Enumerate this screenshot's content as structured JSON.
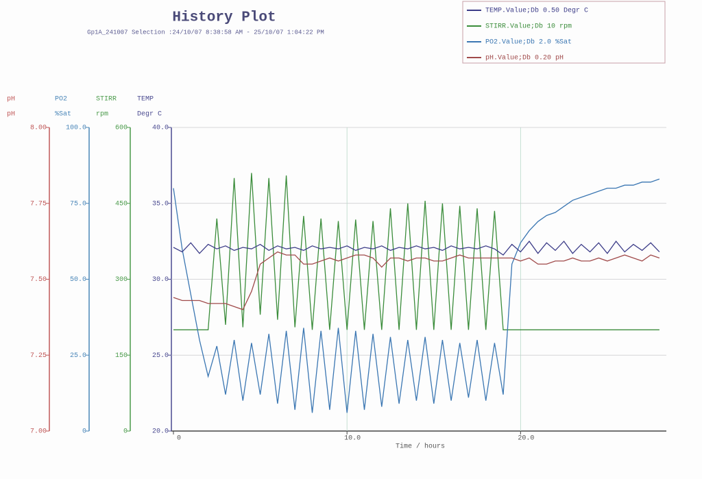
{
  "chart_data": {
    "type": "line",
    "title": "History Plot",
    "subtitle": "Gp1A_241007 Selection :24/10/07 8:38:58 AM - 25/10/07 1:04:22 PM",
    "x_label": "Time / hours",
    "xlim": [
      0,
      28.4
    ],
    "xticks": [
      0,
      {
        "value": 10,
        "label": "10.0"
      },
      {
        "value": 20,
        "label": "20.0"
      }
    ],
    "grid": true,
    "axes": [
      {
        "label": "pH",
        "unit": "pH",
        "color": "#c05858",
        "ylim": [
          7,
          8
        ],
        "yticks": [
          {
            "value": 7,
            "label": "7.00"
          },
          {
            "value": 7.25,
            "label": "7.25"
          },
          {
            "value": 7.5,
            "label": "7.50"
          },
          {
            "value": 7.75,
            "label": "7.75"
          },
          {
            "value": 8,
            "label": "8.00"
          }
        ]
      },
      {
        "label": "PO2",
        "unit": "%Sat",
        "color": "#4a86b8",
        "ylim": [
          0,
          100
        ],
        "yticks": [
          0,
          {
            "value": 25,
            "label": "25.0"
          },
          {
            "value": 50,
            "label": "50.0"
          },
          {
            "value": 75,
            "label": "75.0"
          },
          {
            "value": 100,
            "label": "100.0"
          }
        ]
      },
      {
        "label": "STIRR",
        "unit": "rpm",
        "color": "#4a9a4a",
        "ylim": [
          0,
          600
        ],
        "yticks": [
          0,
          150,
          300,
          450,
          600
        ]
      },
      {
        "label": "TEMP",
        "unit": "Degr C",
        "color": "#4a4a90",
        "ylim": [
          20,
          40
        ],
        "yticks": [
          {
            "value": 20,
            "label": "20.0"
          },
          {
            "value": 25,
            "label": "25.0"
          },
          {
            "value": 30,
            "label": "30.0"
          },
          {
            "value": 35,
            "label": "35.0"
          },
          {
            "value": 40,
            "label": "40.0"
          }
        ]
      }
    ],
    "x": [
      0,
      0.5,
      1,
      1.5,
      2,
      2.5,
      3,
      3.5,
      4,
      4.5,
      5,
      5.5,
      6,
      6.5,
      7,
      7.5,
      8,
      8.5,
      9,
      9.5,
      10,
      10.5,
      11,
      11.5,
      12,
      12.5,
      13,
      13.5,
      14,
      14.5,
      15,
      15.5,
      16,
      16.5,
      17,
      17.5,
      18,
      18.5,
      19,
      19.5,
      20,
      20.5,
      21,
      21.5,
      22,
      22.5,
      23,
      23.5,
      24,
      24.5,
      25,
      25.5,
      26,
      26.5,
      27,
      27.5,
      28
    ],
    "series": [
      {
        "name": "TEMP.Value;Db 0.50 Degr C",
        "axis": "TEMP",
        "color": "#3c3c88",
        "values": [
          32.1,
          31.8,
          32.4,
          31.7,
          32.3,
          32.0,
          32.2,
          31.9,
          32.1,
          32.0,
          32.3,
          31.9,
          32.2,
          32.0,
          32.1,
          31.9,
          32.2,
          32.0,
          32.1,
          32.0,
          32.2,
          31.9,
          32.1,
          32.0,
          32.2,
          31.9,
          32.1,
          32.0,
          32.2,
          32.0,
          32.1,
          31.9,
          32.2,
          32.0,
          32.1,
          32.0,
          32.2,
          32.0,
          31.6,
          32.3,
          31.8,
          32.5,
          31.7,
          32.4,
          31.9,
          32.5,
          31.7,
          32.3,
          31.8,
          32.4,
          31.7,
          32.5,
          31.8,
          32.3,
          31.9,
          32.4,
          31.8
        ]
      },
      {
        "name": "STIRR.Value;Db 10 rpm",
        "axis": "STIRR",
        "color": "#3a8c3a",
        "values": [
          200,
          200,
          200,
          200,
          200,
          420,
          210,
          500,
          205,
          510,
          230,
          500,
          220,
          505,
          205,
          425,
          200,
          420,
          200,
          415,
          200,
          418,
          200,
          415,
          200,
          440,
          200,
          450,
          200,
          455,
          200,
          450,
          200,
          445,
          200,
          440,
          200,
          435,
          200,
          200,
          200,
          200,
          200,
          200,
          200,
          200,
          200,
          200,
          200,
          200,
          200,
          200,
          200,
          200,
          200,
          200,
          200
        ]
      },
      {
        "name": "PO2.Value;Db 2.0 %Sat",
        "axis": "PO2",
        "color": "#3a76b2",
        "values": [
          80,
          60,
          45,
          30,
          18,
          28,
          12,
          30,
          10,
          29,
          12,
          32,
          9,
          33,
          7,
          34,
          6,
          33,
          7,
          34,
          6,
          33,
          7,
          32,
          8,
          31,
          9,
          30,
          10,
          31,
          9,
          30,
          10,
          29,
          11,
          30,
          10,
          29,
          12,
          55,
          62,
          66,
          69,
          71,
          72,
          74,
          76,
          77,
          78,
          79,
          80,
          80,
          81,
          81,
          82,
          82,
          83
        ]
      },
      {
        "name": "pH.Value;Db 0.20 pH",
        "axis": "pH",
        "color": "#a04a4a",
        "values": [
          7.44,
          7.43,
          7.43,
          7.43,
          7.42,
          7.42,
          7.42,
          7.41,
          7.4,
          7.46,
          7.55,
          7.57,
          7.59,
          7.58,
          7.58,
          7.55,
          7.55,
          7.56,
          7.57,
          7.56,
          7.57,
          7.58,
          7.58,
          7.57,
          7.54,
          7.57,
          7.57,
          7.56,
          7.57,
          7.57,
          7.56,
          7.56,
          7.57,
          7.58,
          7.57,
          7.57,
          7.57,
          7.57,
          7.57,
          7.57,
          7.56,
          7.57,
          7.55,
          7.55,
          7.56,
          7.56,
          7.57,
          7.56,
          7.56,
          7.57,
          7.56,
          7.57,
          7.58,
          7.57,
          7.56,
          7.58,
          7.57
        ]
      }
    ]
  }
}
